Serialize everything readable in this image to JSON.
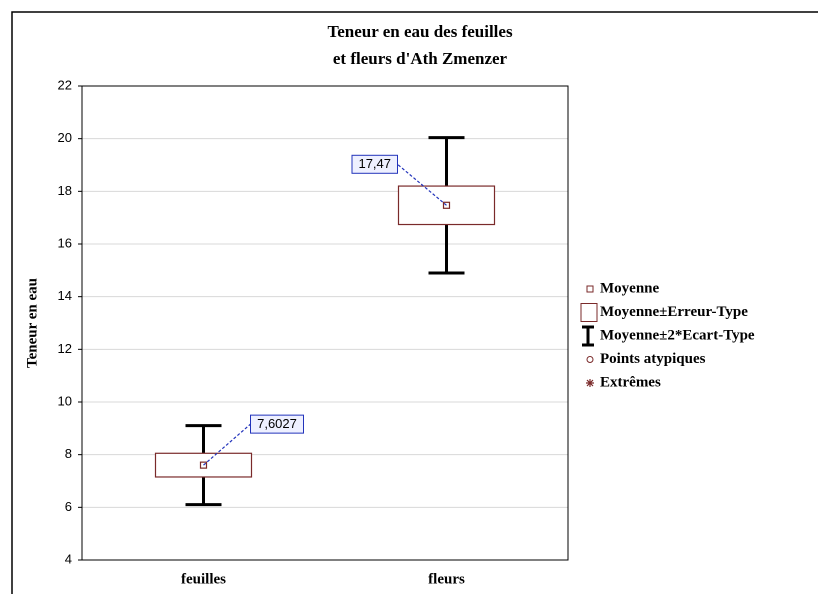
{
  "chart_data": {
    "type": "box",
    "title": [
      "Teneur en eau des feuilles",
      "et fleurs d'Ath Zmenzer"
    ],
    "ylabel": "Teneur en eau",
    "categories": [
      "feuilles",
      "fleurs"
    ],
    "means": [
      7.6027,
      17.47
    ],
    "value_labels": [
      "7,6027",
      "17,47"
    ],
    "se": [
      0.45,
      0.73
    ],
    "sd2": [
      1.5,
      2.57
    ],
    "ylim": [
      4,
      22
    ],
    "yticks": [
      4,
      6,
      8,
      10,
      12,
      14,
      16,
      18,
      20,
      22
    ],
    "grid": true,
    "box_color": "#7a2a2a",
    "legend": [
      "Moyenne",
      "Moyenne±Erreur-Type",
      "Moyenne±2*Ecart-Type",
      "Points atypiques",
      "Extrêmes"
    ]
  }
}
